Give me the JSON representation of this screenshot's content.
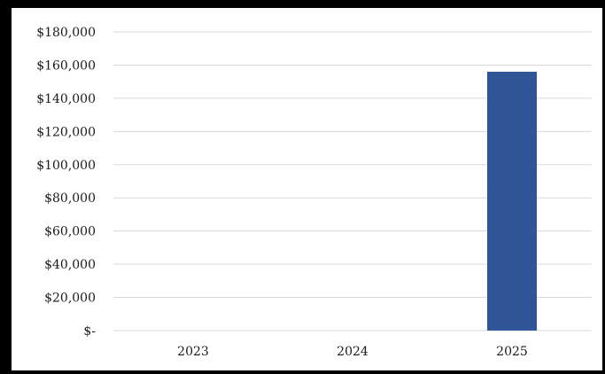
{
  "chart_data": {
    "type": "bar",
    "categories": [
      "2023",
      "2024",
      "2025"
    ],
    "values": [
      0,
      0,
      156000
    ],
    "y_tick_labels": [
      "$-",
      "$20,000",
      "$40,000",
      "$60,000",
      "$80,000",
      "$100,000",
      "$120,000",
      "$140,000",
      "$160,000",
      "$180,000"
    ],
    "y_tick_values": [
      0,
      20000,
      40000,
      60000,
      80000,
      100000,
      120000,
      140000,
      160000,
      180000
    ],
    "ylim": [
      0,
      180000
    ],
    "grid": true,
    "legend": "none",
    "bar_color": "#2f5597",
    "grid_color": "#d9d9d9"
  }
}
